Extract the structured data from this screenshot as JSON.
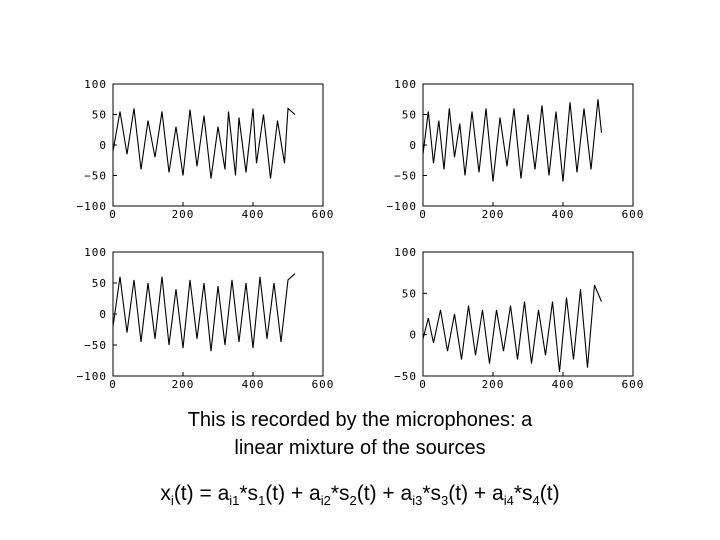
{
  "caption": {
    "line1": "This is recorded by the microphones: a",
    "line2": "linear mixture of the sources"
  },
  "formula": {
    "parts": [
      {
        "t": "x",
        "s": "i"
      },
      {
        "t": "(t) = a",
        "s": "i1"
      },
      {
        "t": "*s",
        "s": "1"
      },
      {
        "t": "(t) + a",
        "s": "i2"
      },
      {
        "t": "*s",
        "s": "2"
      },
      {
        "t": "(t) + a",
        "s": "i3"
      },
      {
        "t": "*s",
        "s": "3"
      },
      {
        "t": "(t) + a",
        "s": "i4"
      },
      {
        "t": "*s",
        "s": "4"
      },
      {
        "t": "(t)",
        "s": ""
      }
    ]
  },
  "chart_data": [
    {
      "type": "line",
      "xlim": [
        0,
        600
      ],
      "ylim": [
        -100,
        100
      ],
      "xticks": [
        0,
        200,
        400,
        600
      ],
      "yticks": [
        100,
        50,
        0,
        -50,
        -100
      ],
      "series": [
        {
          "x": [
            0,
            20,
            40,
            60,
            80,
            100,
            120,
            140,
            160,
            180,
            200,
            220,
            240,
            260,
            280,
            300,
            320,
            330,
            350,
            360,
            380,
            400,
            410,
            430,
            450,
            470,
            490,
            500,
            520
          ],
          "y": [
            -10,
            55,
            -15,
            60,
            -40,
            40,
            -20,
            55,
            -45,
            30,
            -50,
            58,
            -35,
            48,
            -55,
            30,
            -40,
            55,
            -50,
            45,
            -45,
            60,
            -30,
            50,
            -55,
            40,
            -30,
            60,
            50
          ]
        }
      ]
    },
    {
      "type": "line",
      "xlim": [
        0,
        600
      ],
      "ylim": [
        -100,
        100
      ],
      "xticks": [
        0,
        200,
        400,
        600
      ],
      "yticks": [
        100,
        50,
        0,
        -50,
        -100
      ],
      "series": [
        {
          "x": [
            0,
            15,
            30,
            45,
            60,
            75,
            90,
            105,
            120,
            140,
            160,
            180,
            200,
            220,
            240,
            260,
            280,
            300,
            320,
            340,
            360,
            380,
            400,
            420,
            440,
            460,
            480,
            500,
            510
          ],
          "y": [
            -15,
            55,
            -30,
            40,
            -40,
            60,
            -20,
            35,
            -50,
            55,
            -45,
            60,
            -60,
            45,
            -35,
            60,
            -55,
            50,
            -40,
            65,
            -50,
            55,
            -60,
            70,
            -45,
            60,
            -40,
            75,
            20
          ]
        }
      ]
    },
    {
      "type": "line",
      "xlim": [
        0,
        600
      ],
      "ylim": [
        -100,
        100
      ],
      "xticks": [
        0,
        200,
        400,
        600
      ],
      "yticks": [
        100,
        50,
        0,
        -50,
        -100
      ],
      "series": [
        {
          "x": [
            0,
            20,
            40,
            60,
            80,
            100,
            120,
            140,
            160,
            180,
            200,
            220,
            240,
            260,
            280,
            300,
            320,
            340,
            360,
            380,
            400,
            420,
            440,
            460,
            480,
            500,
            520
          ],
          "y": [
            -20,
            60,
            -30,
            55,
            -45,
            50,
            -40,
            60,
            -50,
            40,
            -55,
            55,
            -40,
            50,
            -60,
            45,
            -50,
            55,
            -45,
            50,
            -55,
            60,
            -40,
            50,
            -45,
            55,
            65
          ]
        }
      ]
    },
    {
      "type": "line",
      "xlim": [
        0,
        600
      ],
      "ylim": [
        -50,
        100
      ],
      "xticks": [
        0,
        200,
        400,
        600
      ],
      "yticks": [
        100,
        50,
        0,
        -50
      ],
      "series": [
        {
          "x": [
            0,
            15,
            30,
            50,
            70,
            90,
            110,
            130,
            150,
            170,
            190,
            210,
            230,
            250,
            270,
            290,
            310,
            330,
            350,
            370,
            390,
            410,
            430,
            450,
            470,
            490,
            510
          ],
          "y": [
            -5,
            20,
            -10,
            30,
            -20,
            25,
            -30,
            35,
            -25,
            30,
            -35,
            30,
            -20,
            35,
            -30,
            40,
            -35,
            30,
            -25,
            40,
            -45,
            45,
            -30,
            55,
            -40,
            60,
            40
          ]
        }
      ]
    }
  ]
}
